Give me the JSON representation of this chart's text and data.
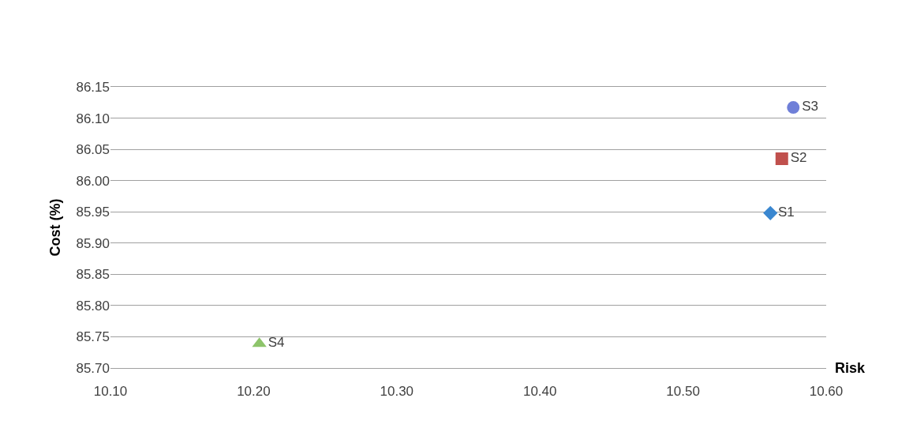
{
  "chart_data": {
    "type": "scatter",
    "xlabel": "Risk",
    "ylabel": "Cost (%)",
    "series": [
      {
        "name": "S1",
        "color": "#3a87d0",
        "marker": "diamond",
        "x": [
          10.561
        ],
        "values": [
          85.948
        ]
      },
      {
        "name": "S2",
        "color": "#c0504d",
        "marker": "square",
        "x": [
          10.569
        ],
        "values": [
          86.035
        ]
      },
      {
        "name": "S3",
        "color": "#6f7fd8",
        "marker": "circle",
        "x": [
          10.577
        ],
        "values": [
          86.117
        ]
      },
      {
        "name": "S4",
        "color": "#8dc46a",
        "marker": "triangle",
        "x": [
          10.204
        ],
        "values": [
          85.739
        ]
      }
    ],
    "xlim": [
      10.1,
      10.6
    ],
    "xticks": [
      {
        "value": 10.1,
        "label": "10.10"
      },
      {
        "value": 10.2,
        "label": "10.20"
      },
      {
        "value": 10.3,
        "label": "10.30"
      },
      {
        "value": 10.4,
        "label": "10.40"
      },
      {
        "value": 10.5,
        "label": "10.50"
      },
      {
        "value": 10.6,
        "label": "10.60"
      }
    ],
    "ylim": [
      85.7,
      86.15
    ],
    "yticks": [
      {
        "value": 85.7,
        "label": "85.70"
      },
      {
        "value": 85.75,
        "label": "85.75"
      },
      {
        "value": 85.8,
        "label": "85.80"
      },
      {
        "value": 85.85,
        "label": "85.85"
      },
      {
        "value": 85.9,
        "label": "85.90"
      },
      {
        "value": 85.95,
        "label": "85.95"
      },
      {
        "value": 86.0,
        "label": "86.00"
      },
      {
        "value": 86.05,
        "label": "86.05"
      },
      {
        "value": 86.1,
        "label": "86.10"
      },
      {
        "value": 86.15,
        "label": "86.15"
      }
    ],
    "grid": "y",
    "legend": false
  }
}
